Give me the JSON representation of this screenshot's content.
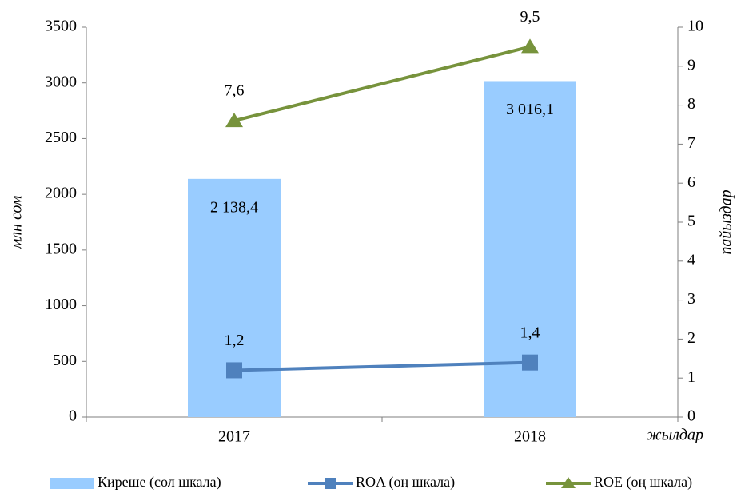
{
  "chart_data": {
    "type": "bar",
    "categories": [
      "2017",
      "2018"
    ],
    "series": [
      {
        "name": "Киреше (сол шкала)",
        "type": "bar",
        "color": "#99ccff",
        "values": [
          2138.4,
          3016.1
        ],
        "value_labels": [
          "2 138,4",
          "3 016,1"
        ]
      },
      {
        "name": "ROA (оң шкала)",
        "type": "line",
        "marker": "square",
        "axis": "y2",
        "color": "#4f81bd",
        "values": [
          1.2,
          1.4
        ],
        "value_labels": [
          "1,2",
          "1,4"
        ]
      },
      {
        "name": "ROE (оң шкала)",
        "type": "line",
        "marker": "triangle",
        "axis": "y2",
        "color": "#77933c",
        "values": [
          7.6,
          9.5
        ],
        "value_labels": [
          "7,6",
          "9,5"
        ]
      }
    ],
    "ylabel": "млн сом",
    "y2label": "пайыздар",
    "xlabel": "жылдар",
    "ylim": [
      0,
      3500
    ],
    "yticks": [
      0,
      500,
      1000,
      1500,
      2000,
      2500,
      3000,
      3500
    ],
    "y2lim": [
      0,
      10
    ],
    "y2ticks": [
      0,
      1,
      2,
      3,
      4,
      5,
      6,
      7,
      8,
      9,
      10
    ],
    "grid": false,
    "legend": "bottom"
  }
}
